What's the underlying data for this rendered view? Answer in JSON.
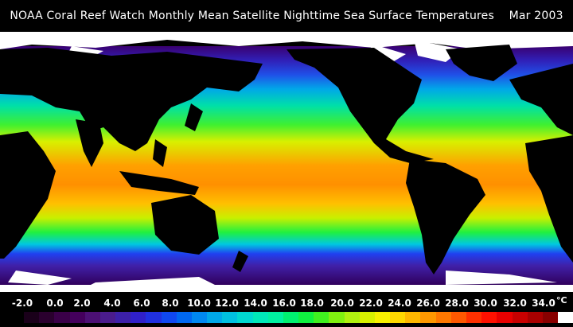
{
  "title": "NOAA Coral Reef Watch Monthly Mean Satellite Nighttime Sea Surface Temperatures    Mar 2003",
  "colors": {
    "background": "#000000",
    "land": "#000000",
    "ice": "#ffffff"
  },
  "legend": {
    "ticks": [
      "-2.0",
      "0.0",
      "2.0",
      "4.0",
      "6.0",
      "8.0",
      "10.0",
      "12.0",
      "14.0",
      "16.0",
      "18.0",
      "20.0",
      "22.0",
      "24.0",
      "26.0",
      "28.0",
      "30.0",
      "32.0",
      "34.0"
    ],
    "unit": "°C",
    "min": -2,
    "max": 34,
    "step": 1,
    "swatches": [
      "#1a001a",
      "#2a002e",
      "#3a0048",
      "#44005c",
      "#4c1074",
      "#4a1c8c",
      "#3c20a8",
      "#3020c8",
      "#2030e0",
      "#1048f0",
      "#0068f0",
      "#0088f0",
      "#00a8e8",
      "#00c0e0",
      "#00d8d0",
      "#00e8b8",
      "#00f0a0",
      "#00f070",
      "#10f040",
      "#40f020",
      "#80f010",
      "#b0f010",
      "#d8f000",
      "#f8f000",
      "#ffd800",
      "#ffb800",
      "#ff9800",
      "#ff7800",
      "#ff5800",
      "#ff3000",
      "#ff1000",
      "#e80000",
      "#c80000",
      "#a80000",
      "#880000",
      "#ffffff"
    ]
  }
}
